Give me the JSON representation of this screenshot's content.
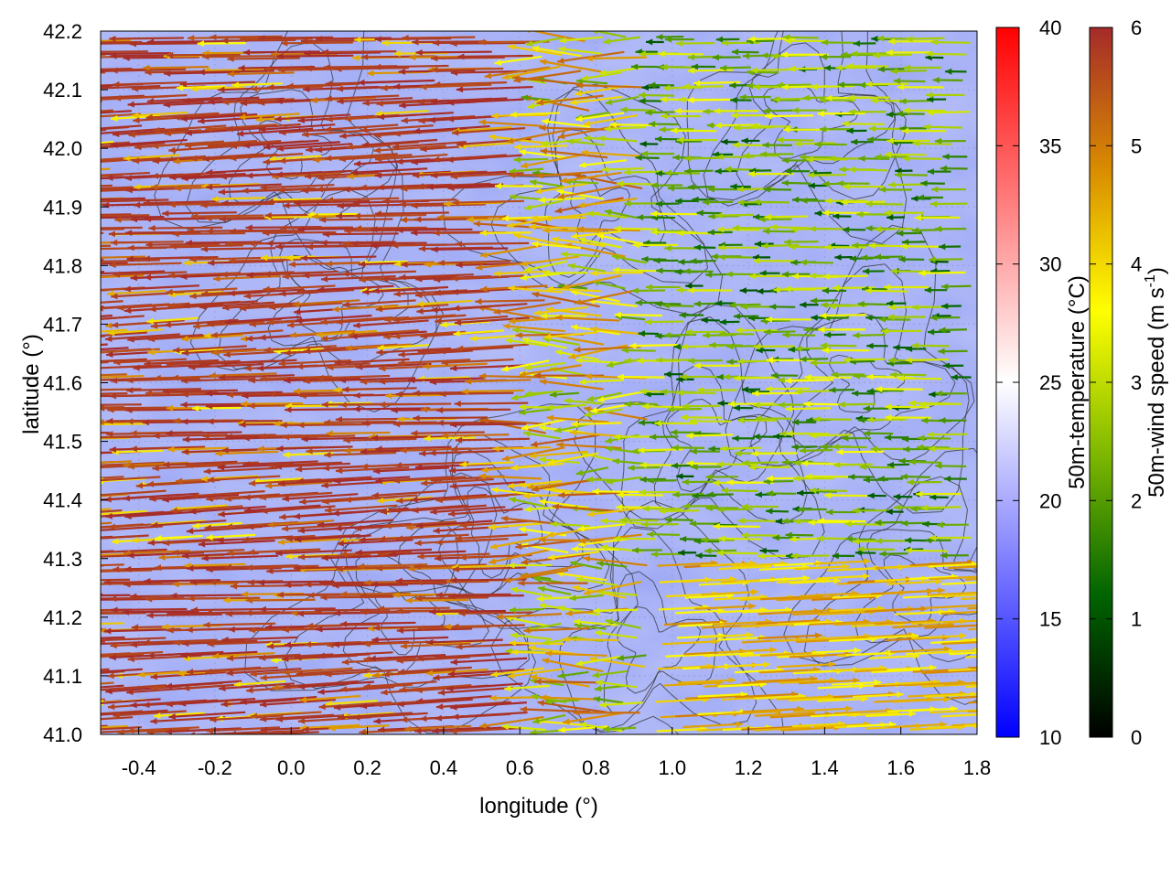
{
  "chart_data": {
    "type": "vector-field",
    "xlabel": "longitude (°)",
    "ylabel": "latitude (°)",
    "xlim": [
      -0.5,
      1.8
    ],
    "ylim": [
      41.0,
      42.2
    ],
    "xticks": [
      "-0.4",
      "-0.2",
      "0.0",
      "0.2",
      "0.4",
      "0.6",
      "0.8",
      "1.0",
      "1.2",
      "1.4",
      "1.6",
      "1.8"
    ],
    "yticks": [
      "41.0",
      "41.1",
      "41.2",
      "41.3",
      "41.4",
      "41.5",
      "41.6",
      "41.7",
      "41.8",
      "41.9",
      "42.0",
      "42.1",
      "42.2"
    ],
    "grid": true,
    "layers": {
      "background": "50m-temperature heatmap (mostly 15–22 °C)",
      "contours": "terrain elevation contours (black)",
      "vectors": "50m wind arrows, mostly westward, coloured by speed"
    },
    "wind_regions": [
      {
        "region": "west (lon -0.5–0.6)",
        "dominant_direction": "west",
        "typical_speed": 6
      },
      {
        "region": "east (lon 0.8–1.8, lat 41.4–42.2)",
        "dominant_direction": "west",
        "typical_speed": 2
      },
      {
        "region": "south-east (lon 1.0–1.8, lat 41.0–41.3)",
        "dominant_direction": "east",
        "typical_speed": 4.5
      }
    ],
    "colorbars": [
      {
        "label": "50m-temperature (°C)",
        "range": [
          10,
          40
        ],
        "ticks": [
          "10",
          "15",
          "20",
          "25",
          "30",
          "35",
          "40"
        ],
        "colors": [
          "#0000ff",
          "#ffffff",
          "#ff0000"
        ]
      },
      {
        "label": "50m-wind speed (m s-1)",
        "label_main": "50m-wind speed (m s",
        "label_sup": "-1",
        "label_end": ")",
        "range": [
          0,
          6
        ],
        "ticks": [
          "0",
          "1",
          "2",
          "3",
          "4",
          "5",
          "6"
        ],
        "colors": [
          "#000000",
          "#006400",
          "#7fb800",
          "#ffff00",
          "#d98c00",
          "#a52a2a"
        ]
      }
    ]
  }
}
